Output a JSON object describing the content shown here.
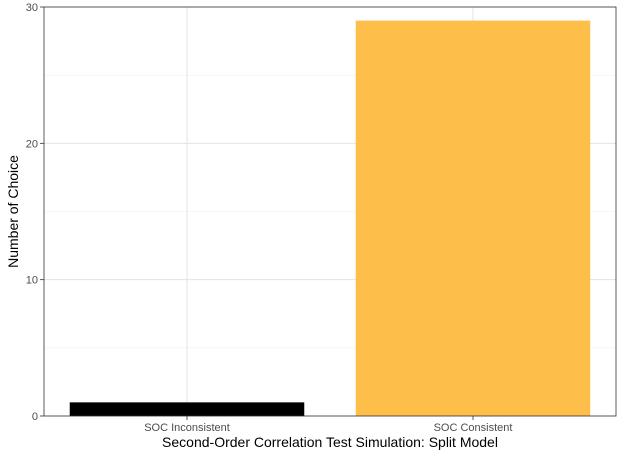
{
  "chart_data": {
    "type": "bar",
    "title": "",
    "xlabel": "Second-Order Correlation Test Simulation: Split Model",
    "ylabel": "Number of Choice",
    "categories": [
      "SOC Inconsistent",
      "SOC Consistent"
    ],
    "values": [
      1,
      29
    ],
    "bar_colors": [
      "#000000",
      "#FDBE4A"
    ],
    "ylim": [
      0,
      30
    ],
    "y_ticks": [
      0,
      10,
      20,
      30
    ],
    "grid": true,
    "legend": "none"
  }
}
